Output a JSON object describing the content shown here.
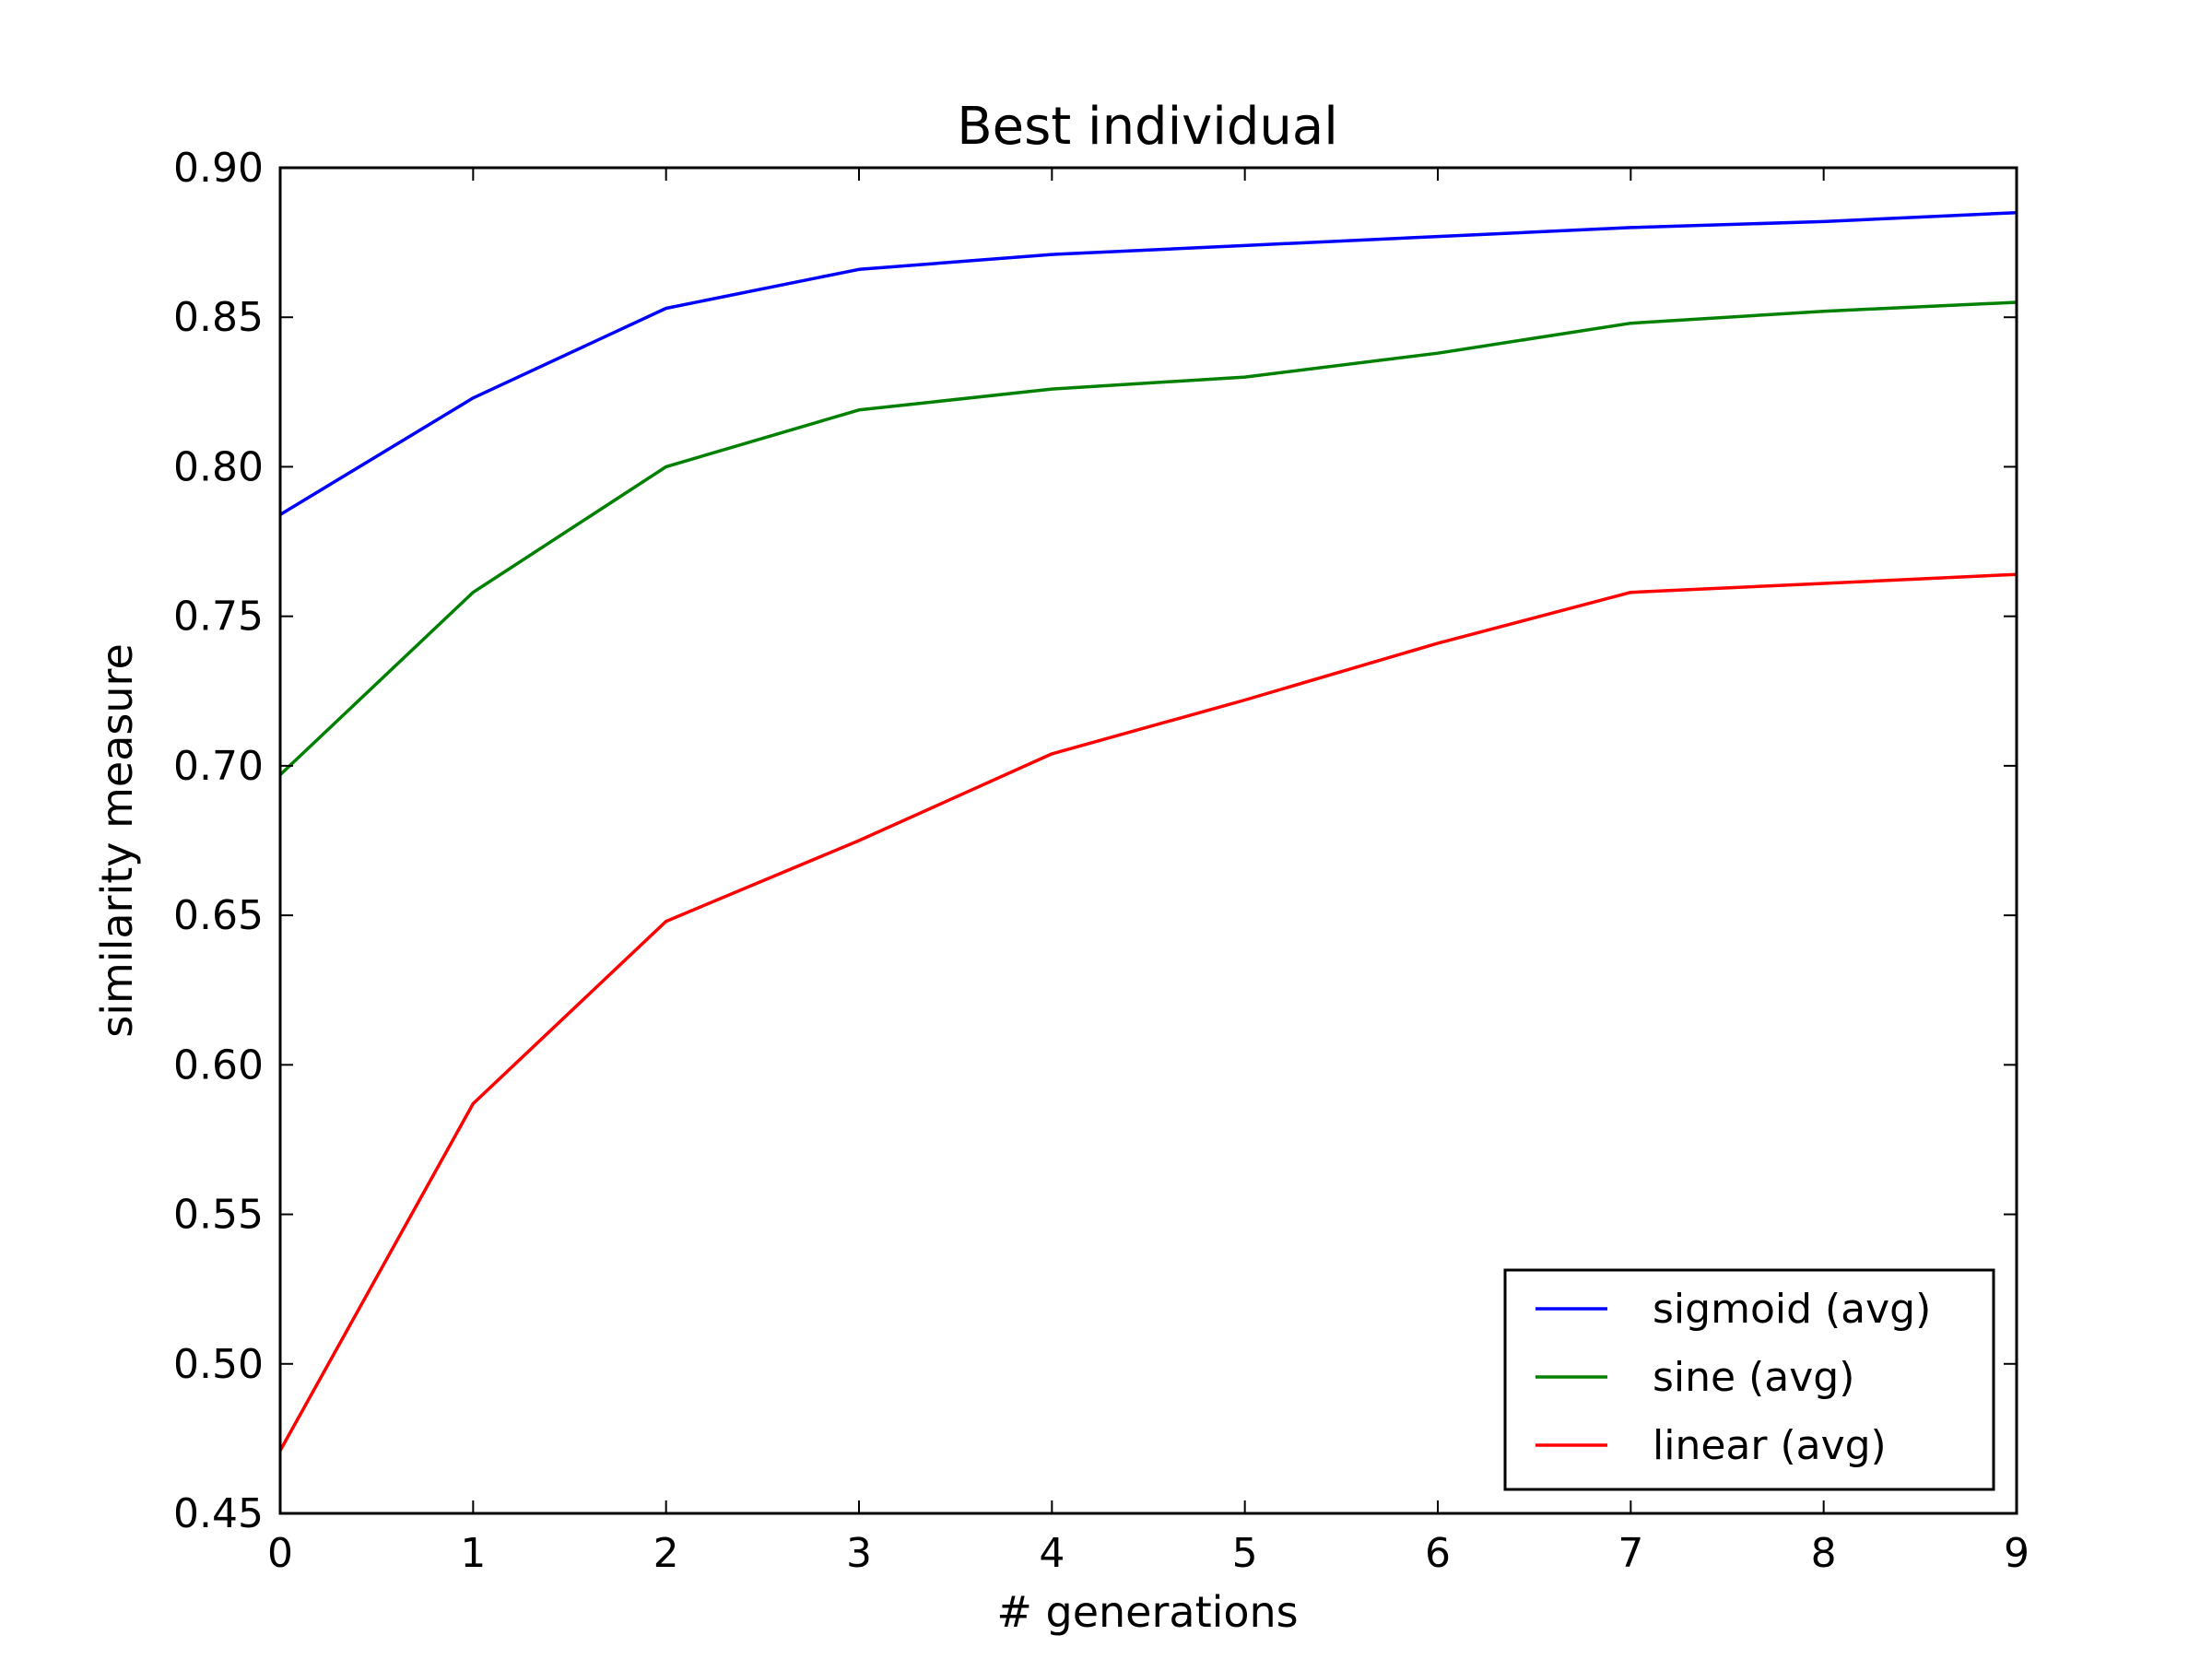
{
  "chart_data": {
    "type": "line",
    "title": "Best individual",
    "xlabel": "# generations",
    "ylabel": "similarity measure",
    "x": [
      0,
      1,
      2,
      3,
      4,
      5,
      6,
      7,
      8,
      9
    ],
    "xlim": [
      0,
      9
    ],
    "ylim": [
      0.45,
      0.9
    ],
    "xticks": [
      "0",
      "1",
      "2",
      "3",
      "4",
      "5",
      "6",
      "7",
      "8",
      "9"
    ],
    "yticks": [
      "0.45",
      "0.50",
      "0.55",
      "0.60",
      "0.65",
      "0.70",
      "0.75",
      "0.80",
      "0.85",
      "0.90"
    ],
    "grid": false,
    "legend_position": "lower-right",
    "series": [
      {
        "name": "sigmoid (avg)",
        "color": "#0000ff",
        "values": [
          0.784,
          0.823,
          0.853,
          0.866,
          0.871,
          0.874,
          0.877,
          0.88,
          0.882,
          0.885
        ]
      },
      {
        "name": "sine (avg)",
        "color": "#008000",
        "values": [
          0.697,
          0.758,
          0.8,
          0.819,
          0.826,
          0.83,
          0.838,
          0.848,
          0.852,
          0.855
        ]
      },
      {
        "name": "linear (avg)",
        "color": "#ff0000",
        "values": [
          0.471,
          0.587,
          0.648,
          0.675,
          0.704,
          0.722,
          0.741,
          0.758,
          0.761,
          0.764
        ]
      }
    ]
  }
}
